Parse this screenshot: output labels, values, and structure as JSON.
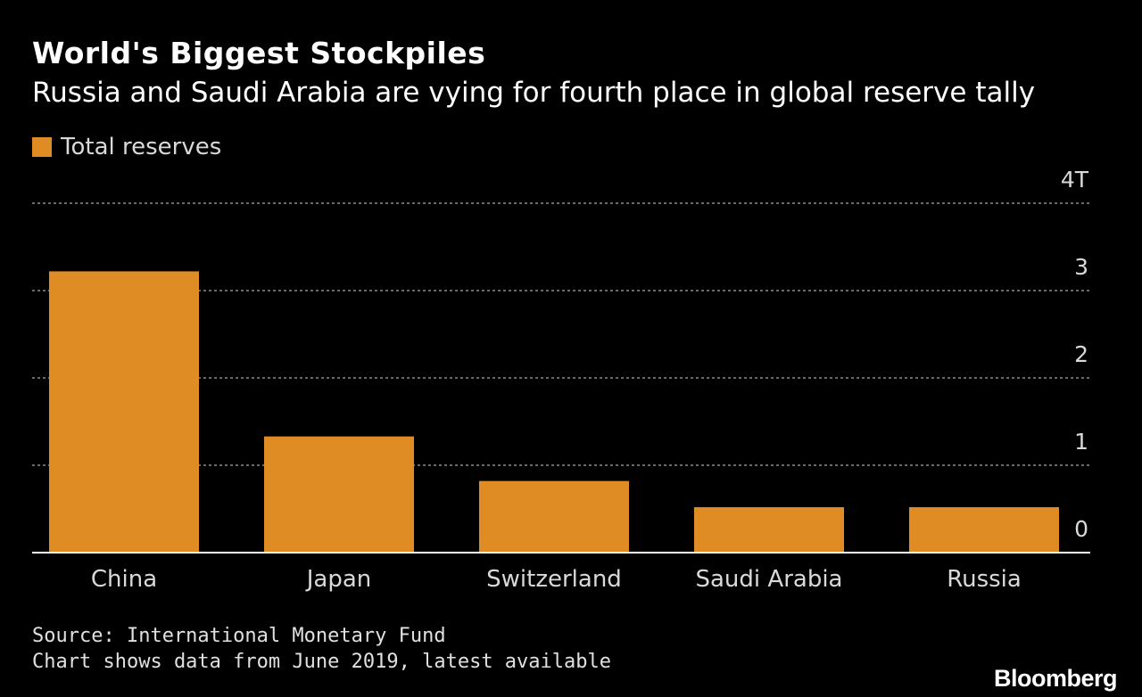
{
  "chart_data": {
    "type": "bar",
    "title": "World's Biggest Stockpiles",
    "subtitle": "Russia and Saudi Arabia are vying for fourth place in global reserve tally",
    "categories": [
      "China",
      "Japan",
      "Switzerland",
      "Saudi Arabia",
      "Russia"
    ],
    "series": [
      {
        "name": "Total reserves",
        "values": [
          3.22,
          1.33,
          0.82,
          0.52,
          0.52
        ],
        "color": "#e08c24"
      }
    ],
    "ylim": [
      0,
      4
    ],
    "yticks": [
      {
        "value": 0,
        "label": "0"
      },
      {
        "value": 1,
        "label": "1"
      },
      {
        "value": 2,
        "label": "2"
      },
      {
        "value": 3,
        "label": "3"
      },
      {
        "value": 4,
        "label": "4T"
      }
    ],
    "grid": true,
    "legend_position": "top-left",
    "ylabel": "",
    "xlabel": ""
  },
  "footer": {
    "source": "Source: International Monetary Fund",
    "note": "Chart shows data from June 2019, latest available",
    "brand": "Bloomberg"
  },
  "colors": {
    "background": "#000000",
    "bar": "#e08c24",
    "grid": "#8c8c8c",
    "axis": "#ffffff"
  }
}
